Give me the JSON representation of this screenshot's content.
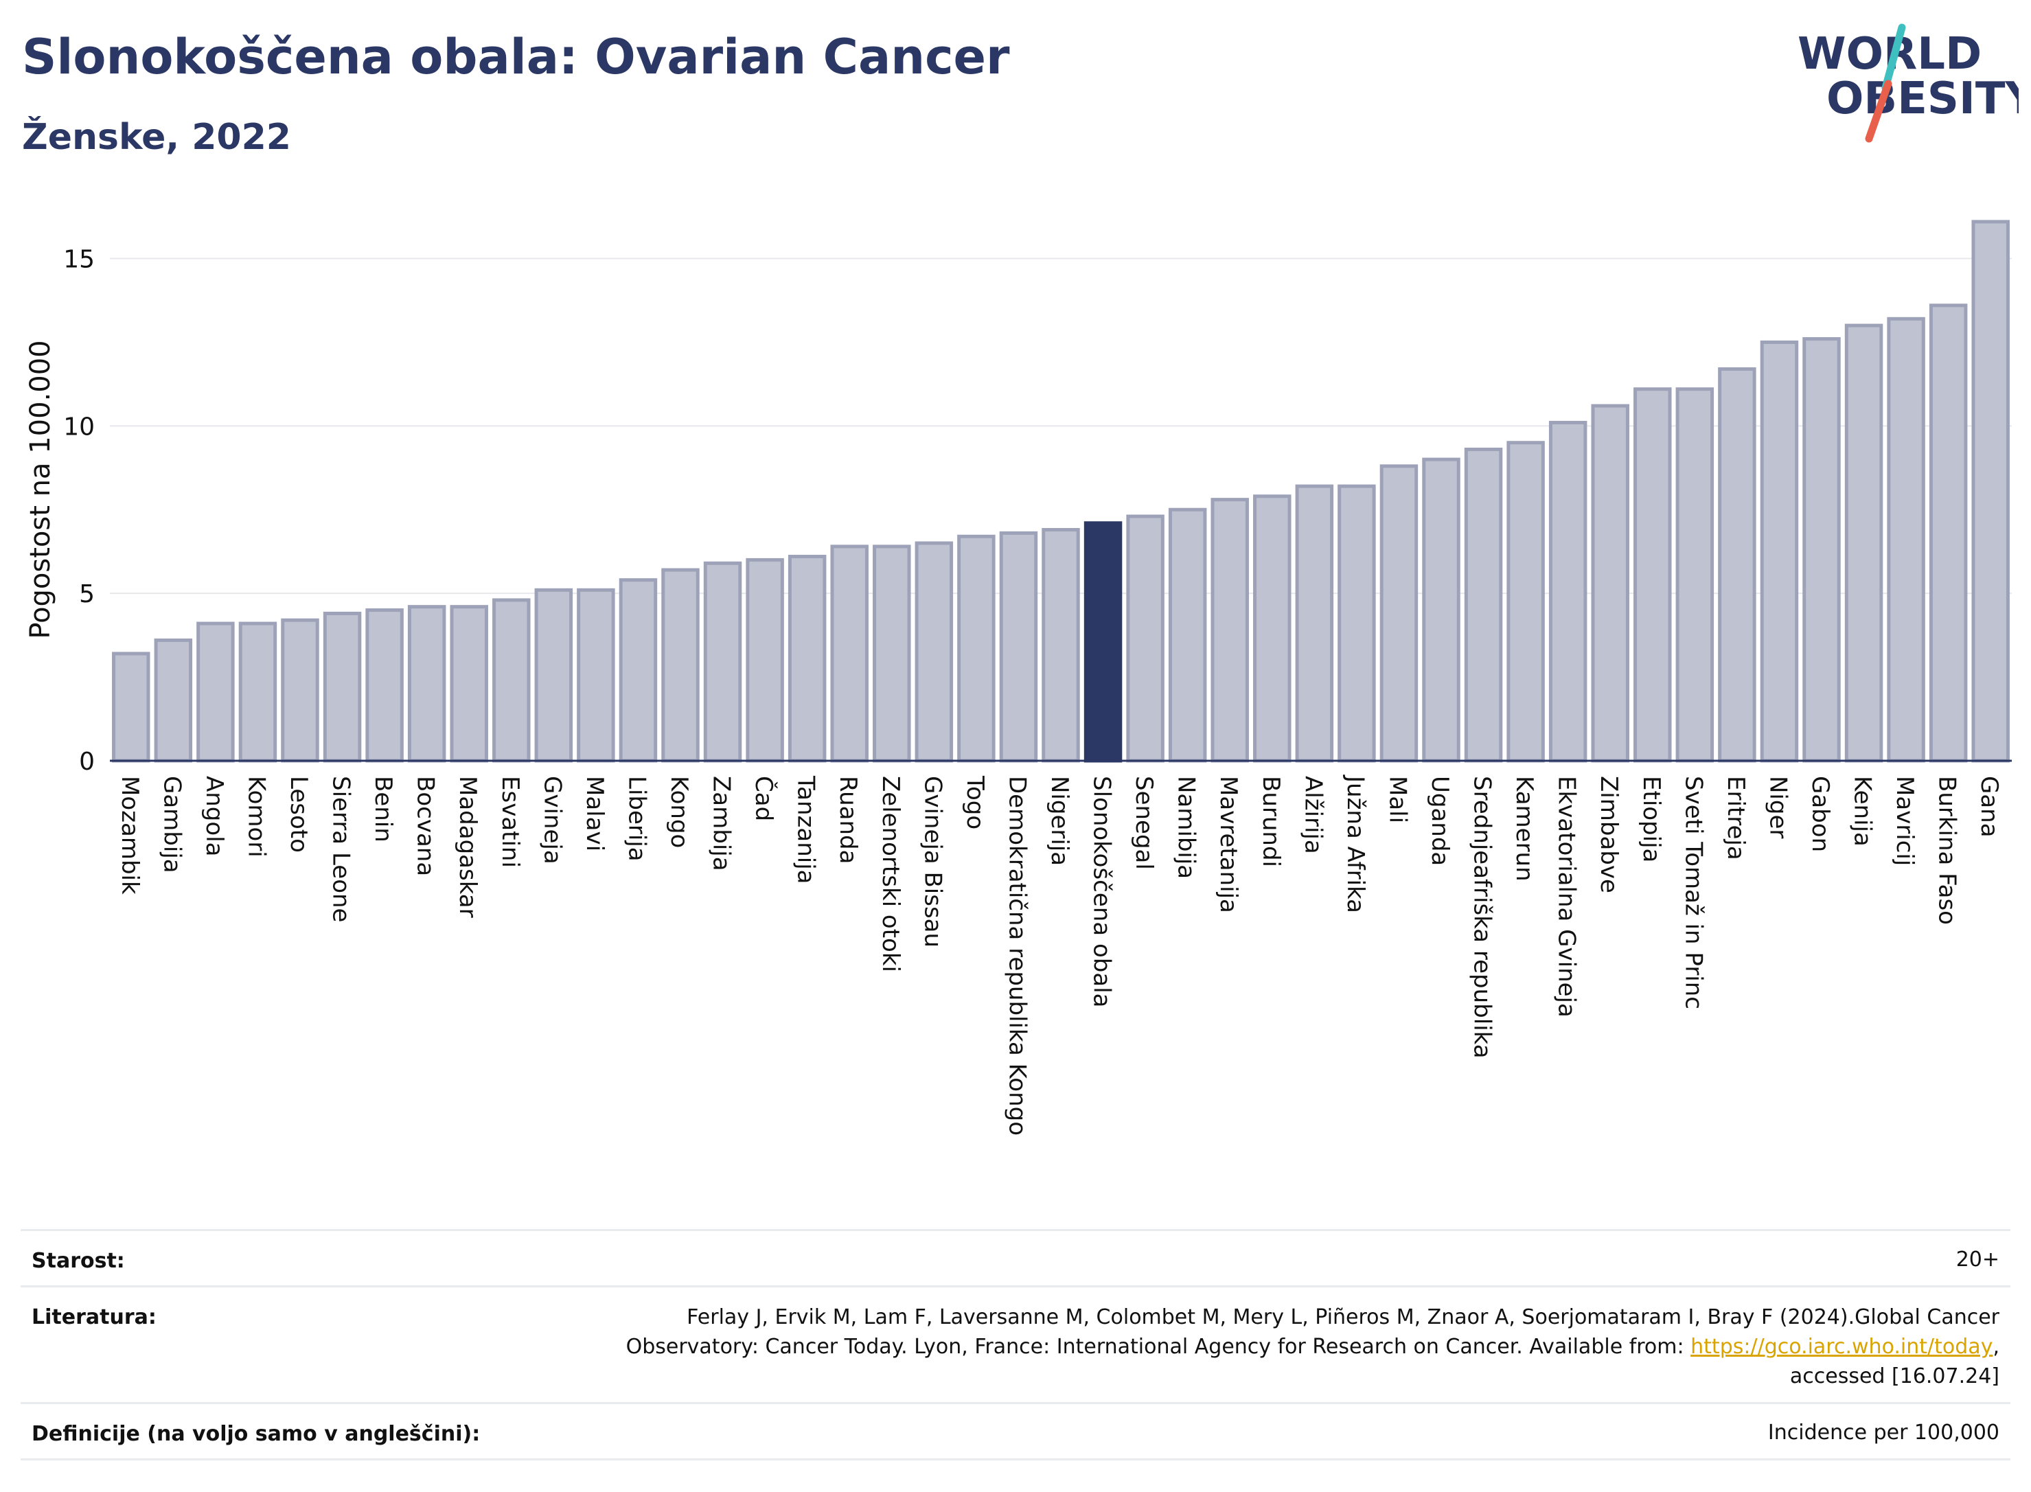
{
  "header": {
    "title": "Slonokoščena obala: Ovarian Cancer",
    "subtitle": "Ženske, 2022"
  },
  "logo": {
    "line1": "WORLD",
    "line2": "OBESITY",
    "accent_teal": "#3fbfbf",
    "accent_red": "#e8604c",
    "text_color": "#2b3764"
  },
  "chart_data": {
    "type": "bar",
    "title": "Slonokoščena obala: Ovarian Cancer",
    "subtitle": "Ženske, 2022",
    "ylabel": "Pogostost na 100.000",
    "ylim": [
      0,
      16.2
    ],
    "yticks": [
      0,
      5,
      10,
      15
    ],
    "grid": true,
    "highlight": "Slonokoščena obala",
    "colors": {
      "bar": "#bfc2d0",
      "bar_border": "#9da2b8",
      "highlight": "#2b3764"
    },
    "categories": [
      "Mozambik",
      "Gambija",
      "Angola",
      "Komori",
      "Lesoto",
      "Sierra Leone",
      "Benin",
      "Bocvana",
      "Madagaskar",
      "Esvatini",
      "Gvineja",
      "Malavi",
      "Liberija",
      "Kongo",
      "Zambija",
      "Čad",
      "Tanzanija",
      "Ruanda",
      "Zelenortski otoki",
      "Gvineja Bissau",
      "Togo",
      "Demokratična republika Kongo",
      "Nigerija",
      "Slonokoščena obala",
      "Senegal",
      "Namibija",
      "Mavretanija",
      "Burundi",
      "Alžirija",
      "Južna Afrika",
      "Mali",
      "Uganda",
      "Srednjeafriška republika",
      "Kamerun",
      "Ekvatorialna Gvineja",
      "Zimbabve",
      "Etiopija",
      "Sveti Tomaž in Princ",
      "Eritreja",
      "Niger",
      "Gabon",
      "Kenija",
      "Mavricij",
      "Burkina Faso",
      "Gana"
    ],
    "values": [
      3.2,
      3.6,
      4.1,
      4.1,
      4.2,
      4.4,
      4.5,
      4.6,
      4.6,
      4.8,
      5.1,
      5.1,
      5.4,
      5.7,
      5.9,
      6.0,
      6.1,
      6.4,
      6.4,
      6.5,
      6.7,
      6.8,
      6.9,
      7.1,
      7.3,
      7.5,
      7.8,
      7.9,
      8.2,
      8.2,
      8.8,
      9.0,
      9.3,
      9.5,
      10.1,
      10.6,
      11.1,
      11.1,
      11.7,
      12.5,
      12.6,
      13.0,
      13.2,
      13.6,
      16.1
    ]
  },
  "info": {
    "age_label": "Starost:",
    "age_value": "20+",
    "lit_label": "Literatura:",
    "lit_line1": "Ferlay J, Ervik M, Lam F, Laversanne M, Colombet M, Mery L, Piñeros M, Znaor A, Soerjomataram I, Bray F (2024).Global Cancer",
    "lit_line2_pre": "Observatory: Cancer Today. Lyon, France: International Agency for Research on Cancer. Available from: ",
    "lit_link": "https://gco.iarc.who.int/today",
    "lit_line2_post": ",",
    "lit_line3": "accessed [16.07.24]",
    "def_label": "Definicije (na voljo samo v angleščini):",
    "def_value": "Incidence per 100,000"
  }
}
